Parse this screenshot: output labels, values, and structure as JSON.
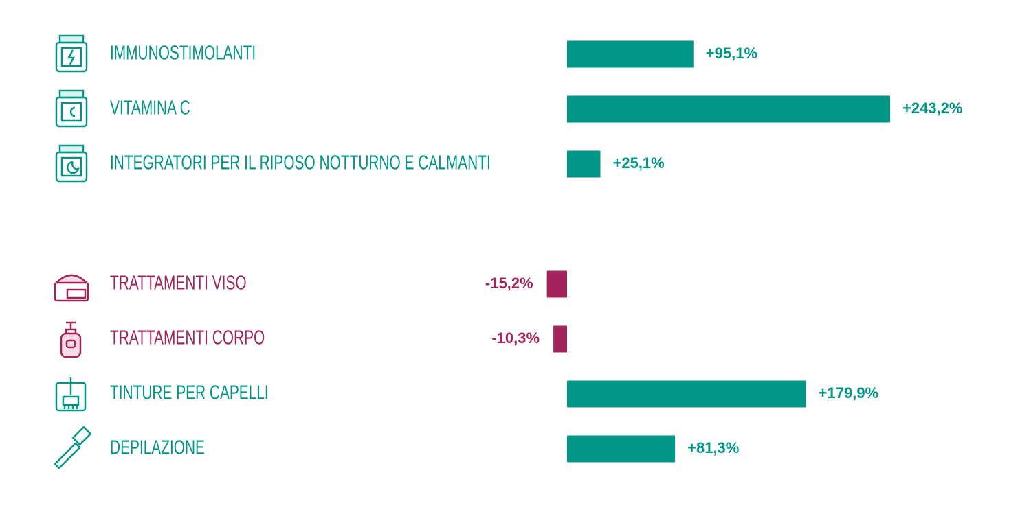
{
  "chart_data": [
    {
      "type": "bar",
      "categories": [
        "IMMUNOSTIMOLANTI",
        "VITAMINA C",
        "INTEGRATORI PER IL RIPOSO NOTTURNO E CALMANTI"
      ],
      "values": [
        95.1,
        243.2,
        25.1
      ],
      "value_labels": [
        "+95,1%",
        "+243,2%",
        "+25,1%"
      ],
      "colors": [
        "#009688",
        "#009688",
        "#009688"
      ]
    },
    {
      "type": "bar",
      "categories": [
        "TRATTAMENTI VISO",
        "TRATTAMENTI CORPO",
        "TINTURE PER CAPELLI",
        "DEPILAZIONE"
      ],
      "values": [
        -15.2,
        -10.3,
        179.9,
        81.3
      ],
      "value_labels": [
        "-15,2%",
        "-10,3%",
        "+179,9%",
        "+81,3%"
      ],
      "colors": [
        "#a3245c",
        "#a3245c",
        "#009688",
        "#009688"
      ]
    }
  ]
}
